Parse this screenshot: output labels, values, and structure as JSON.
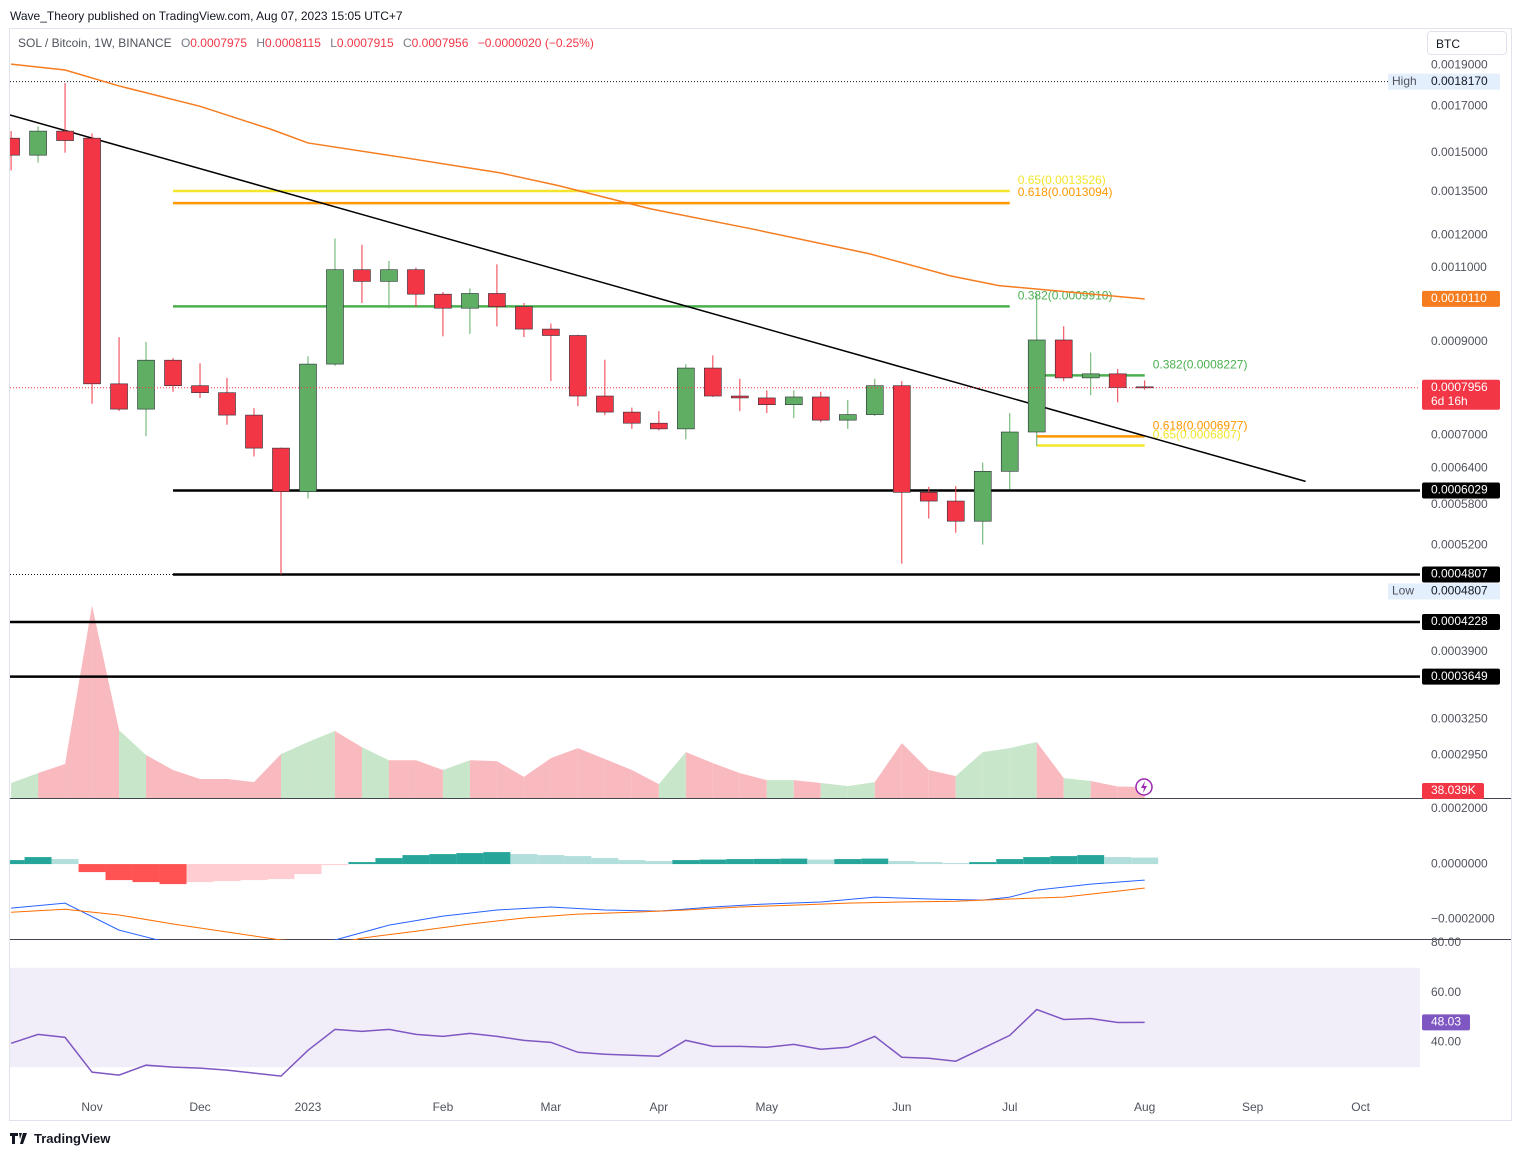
{
  "header": {
    "publisher": "Wave_Theory published on TradingView.com, Aug 07, 2023 15:05 UTC+7",
    "symbol": "SOL / Bitcoin, 1W, BINANCE",
    "o": "O",
    "h": "H",
    "l": "L",
    "c": "C",
    "change": "−0.0000020 (−0.25%)",
    "currency": "BTC",
    "countdown": "6d 16h",
    "logo": "TradingView"
  },
  "chart_data": {
    "type": "candlestick",
    "log": true,
    "up_color": "#5fae63",
    "down_color": "#f23645",
    "x": [
      0,
      1,
      2,
      3,
      4,
      5,
      6,
      7,
      8,
      9,
      10,
      11,
      12,
      13,
      14,
      15,
      16,
      17,
      18,
      19,
      20,
      21,
      22,
      23,
      24,
      25,
      26,
      27,
      28,
      29,
      30,
      31,
      32,
      33,
      34,
      35,
      36,
      37,
      38,
      39,
      40,
      41,
      42
    ],
    "open": [
      0.00156,
      0.00149,
      0.00159,
      0.00156,
      0.000804,
      0.000751,
      0.000857,
      0.0008,
      0.000785,
      0.000739,
      0.000676,
      0.000601,
      0.000848,
      0.001094,
      0.00106,
      0.001094,
      0.001024,
      0.000986,
      0.001026,
      0.00099,
      0.000932,
      0.000916,
      0.000778,
      0.000745,
      0.000723,
      0.000712,
      0.000839,
      0.000778,
      0.000774,
      0.00076,
      0.000776,
      0.000729,
      0.00074,
      0.0008,
      0.0006,
      0.000586,
      0.000555,
      0.000635,
      0.000706,
      0.000905,
      0.000817,
      0.000826,
      0.0007975
    ],
    "high": [
      0.00159,
      0.00161,
      0.00181,
      0.00158,
      0.000912,
      0.0009,
      0.000862,
      0.00085,
      0.000817,
      0.000753,
      0.000677,
      0.000866,
      0.00119,
      0.00117,
      0.00112,
      0.0011,
      0.00103,
      0.00104,
      0.00111,
      0.001,
      0.000946,
      0.000918,
      0.000858,
      0.000754,
      0.000747,
      0.000848,
      0.000868,
      0.000815,
      0.00079,
      0.00079,
      0.000787,
      0.00077,
      0.000815,
      0.00081,
      0.000609,
      0.00061,
      0.00065,
      0.000743,
      0.001026,
      0.000939,
      0.000875,
      0.000837,
      0.0008115
    ],
    "low": [
      0.00143,
      0.00146,
      0.0015,
      0.000762,
      0.000747,
      0.000698,
      0.000787,
      0.000774,
      0.00072,
      0.000661,
      0.0004807,
      0.00059,
      0.000844,
      0.001,
      0.000986,
      0.00099,
      0.000914,
      0.00092,
      0.000939,
      0.000912,
      0.00081,
      0.000757,
      0.000739,
      0.000712,
      0.000709,
      0.000692,
      0.000776,
      0.000747,
      0.000743,
      0.000733,
      0.000725,
      0.000712,
      0.000737,
      0.000495,
      0.000559,
      0.000538,
      0.000521,
      0.000605,
      0.00068,
      0.00081,
      0.00078,
      0.000765,
      0.0007915
    ],
    "close": [
      0.00149,
      0.00159,
      0.00155,
      0.000804,
      0.000751,
      0.000857,
      0.0008,
      0.000785,
      0.000739,
      0.000676,
      0.000601,
      0.000848,
      0.001094,
      0.00106,
      0.001094,
      0.001024,
      0.000986,
      0.001026,
      0.00099,
      0.000932,
      0.000916,
      0.000778,
      0.000745,
      0.000723,
      0.000712,
      0.000839,
      0.000778,
      0.000774,
      0.00076,
      0.000776,
      0.000729,
      0.00074,
      0.0008,
      0.0006,
      0.000586,
      0.000555,
      0.000635,
      0.000706,
      0.000905,
      0.000817,
      0.000826,
      0.000796,
      0.0007956
    ],
    "xlim": [
      -0.04,
      52.2
    ],
    "xticks": [
      {
        "value": 3,
        "label": "Nov"
      },
      {
        "value": 7,
        "label": "Dec"
      },
      {
        "value": 11,
        "label": "2023"
      },
      {
        "value": 16,
        "label": "Feb"
      },
      {
        "value": 20,
        "label": "Mar"
      },
      {
        "value": 24,
        "label": "Apr"
      },
      {
        "value": 28,
        "label": "May"
      },
      {
        "value": 33,
        "label": "Jun"
      },
      {
        "value": 37,
        "label": "Jul"
      },
      {
        "value": 42,
        "label": "Aug"
      },
      {
        "value": 46,
        "label": "Sep"
      },
      {
        "value": 50,
        "label": "Oct"
      }
    ],
    "ylim": [
      0.000263,
      0.0021
    ],
    "yticks": [
      {
        "value": 0.0019,
        "label": "0.0019000"
      },
      {
        "value": 0.0017,
        "label": "0.0017000"
      },
      {
        "value": 0.0015,
        "label": "0.0015000"
      },
      {
        "value": 0.00135,
        "label": "0.0013500"
      },
      {
        "value": 0.0012,
        "label": "0.0012000"
      },
      {
        "value": 0.0011,
        "label": "0.0011000"
      },
      {
        "value": 0.0009,
        "label": "0.0009000"
      },
      {
        "value": 0.0007,
        "label": "0.0007000"
      },
      {
        "value": 0.00064,
        "label": "0.0006400"
      },
      {
        "value": 0.00058,
        "label": "0.0005800"
      },
      {
        "value": 0.00052,
        "label": "0.0005200"
      },
      {
        "value": 0.00039,
        "label": "0.0003900"
      },
      {
        "value": 0.000325,
        "label": "0.0003250"
      },
      {
        "value": 0.000295,
        "label": "0.0002950"
      }
    ],
    "ma": {
      "color": "#f57c1f",
      "x": [
        0,
        2,
        4,
        7,
        9.6,
        11,
        14.4,
        18.1,
        20.3,
        23.7,
        27.4,
        31.8,
        34.8,
        36.6,
        42
      ],
      "values": [
        0.001905,
        0.001875,
        0.001796,
        0.0017,
        0.001599,
        0.00154,
        0.001483,
        0.001421,
        0.001372,
        0.001289,
        0.001222,
        0.001142,
        0.001076,
        0.001048,
        0.001011
      ],
      "axis_label": "0.0010110"
    },
    "trendline": {
      "color": "#000000",
      "x": [
        -0.04,
        47.96
      ],
      "values": [
        0.001661,
        0.000618
      ]
    },
    "levels": [
      {
        "value": 0.0006029,
        "xstart": 6
      },
      {
        "value": 0.0004807,
        "xstart": 6
      },
      {
        "value": 0.0004228
      },
      {
        "value": 0.0003649
      }
    ],
    "extremes": [
      {
        "name": "High",
        "value": 0.001817,
        "label": "0.0018170"
      },
      {
        "name": "Low",
        "value": 0.0004807,
        "label": "0.0004807"
      }
    ],
    "fibs": [
      {
        "label": "0.65(0.0013526)",
        "value": 0.0013526,
        "x": [
          6,
          37
        ],
        "color": "#f2e52c"
      },
      {
        "label": "0.618(0.0013094)",
        "value": 0.0013094,
        "x": [
          6,
          37
        ],
        "color": "#ff9800"
      },
      {
        "label": "0.382(0.0009910)",
        "value": 0.000991,
        "x": [
          6,
          37
        ],
        "color": "#4caf50"
      },
      {
        "label": "0.382(0.0008227)",
        "value": 0.0008227,
        "x": [
          38,
          42
        ],
        "color": "#4caf50"
      },
      {
        "label": "0.618(0.0006977)",
        "value": 0.0006977,
        "x": [
          38,
          42
        ],
        "color": "#ff9800"
      },
      {
        "label": "0.65(0.0006807)",
        "value": 0.0006807,
        "x": [
          38,
          42
        ],
        "color": "#f2e52c"
      }
    ],
    "volume": {
      "vlim": [
        0,
        700000
      ],
      "up_color": "#c8e6c9",
      "down_color": "#f8b9bf",
      "values": [
        52000,
        86000,
        118000,
        667000,
        235000,
        149000,
        97000,
        66000,
        66000,
        55000,
        152000,
        194000,
        232000,
        176000,
        131000,
        131000,
        97000,
        131000,
        128000,
        73000,
        138000,
        173000,
        135000,
        97000,
        48000,
        159000,
        121000,
        86000,
        62000,
        62000,
        52000,
        41000,
        55000,
        190000,
        97000,
        76000,
        159000,
        173000,
        194000,
        69000,
        59000,
        40000,
        38039
      ],
      "last_label": "38.039K"
    },
    "macd": {
      "ylim": [
        -0.000276,
        0.000233
      ],
      "yticks": [
        {
          "value": 0.0002,
          "label": "0.0002000"
        },
        {
          "value": 0,
          "label": "0.0000000"
        },
        {
          "value": -0.0002,
          "label": "−0.0002000"
        }
      ],
      "colors": {
        "grow_above": "#26a69a",
        "fall_above": "#b2dfdb",
        "fall_below": "#ff5252",
        "grow_below": "#ffcdd2"
      },
      "histogram": [
        1.45e-05,
        2.55e-05,
        1.82e-05,
        -2.91e-05,
        -5.82e-05,
        -6.55e-05,
        -7.27e-05,
        -6.55e-05,
        -6.18e-05,
        -5.82e-05,
        -5.45e-05,
        -3.64e-05,
        -3.6e-06,
        7.3e-06,
        2.18e-05,
        3.27e-05,
        3.64e-05,
        4e-05,
        4.36e-05,
        3.64e-05,
        3.27e-05,
        2.91e-05,
        2.18e-05,
        1.45e-05,
        1.09e-05,
        1.45e-05,
        1.64e-05,
        1.82e-05,
        1.89e-05,
        2e-05,
        1.64e-05,
        1.82e-05,
        2e-05,
        1.09e-05,
        7.3e-06,
        3.6e-06,
        7.3e-06,
        1.82e-05,
        2.55e-05,
        2.91e-05,
        3.27e-05,
        2.55e-05,
        2.36e-05
      ],
      "macd_line": {
        "color": "#2962ff",
        "x": [
          0,
          2,
          4,
          6,
          11,
          12,
          14,
          16,
          18,
          20,
          22,
          24,
          26,
          28,
          30,
          32,
          34,
          36,
          37,
          38,
          40,
          42
        ],
        "values": [
          -0.00016,
          -0.000142,
          -0.00024,
          -0.00029,
          -0.00029,
          -0.000276,
          -0.000222,
          -0.000189,
          -0.000167,
          -0.000156,
          -0.000167,
          -0.000171,
          -0.000156,
          -0.000145,
          -0.000138,
          -0.00012,
          -0.000127,
          -0.000131,
          -0.00012,
          -9.45e-05,
          -7.27e-05,
          -5.82e-05
        ]
      },
      "signal_line": {
        "color": "#ff6d00",
        "x": [
          0,
          2,
          4,
          6,
          8,
          10,
          12,
          13,
          15,
          17,
          19,
          21,
          23,
          25,
          27,
          29,
          31,
          33,
          35,
          37,
          39,
          41,
          42
        ],
        "values": [
          -0.000175,
          -0.000164,
          -0.000185,
          -0.000218,
          -0.000247,
          -0.000276,
          -0.00029,
          -0.000269,
          -0.000244,
          -0.000218,
          -0.000196,
          -0.000182,
          -0.000175,
          -0.000167,
          -0.000156,
          -0.000149,
          -0.000142,
          -0.000138,
          -0.000135,
          -0.000127,
          -0.00012,
          -9.82e-05,
          -8.73e-05
        ]
      }
    },
    "rsi": {
      "ylim": [
        18.8,
        81.2
      ],
      "yticks": [
        {
          "value": 80,
          "label": "80.00"
        },
        {
          "value": 60,
          "label": "60.00"
        },
        {
          "value": 40,
          "label": "40.00"
        }
      ],
      "band": [
        30,
        70
      ],
      "color": "#7e57c2",
      "values": [
        39.6,
        43.2,
        42,
        28,
        26.8,
        30.8,
        30,
        29.6,
        28.8,
        27.6,
        26.4,
        36.8,
        45.2,
        44.4,
        45.2,
        43.2,
        42.4,
        43.6,
        42.4,
        40.8,
        40,
        36,
        35.2,
        34.8,
        34.4,
        40.8,
        38.4,
        38.4,
        38,
        39.2,
        37.2,
        38,
        42.4,
        34,
        33.6,
        32.4,
        37.6,
        42.8,
        53.2,
        49.2,
        49.6,
        48,
        48.03
      ]
    }
  }
}
